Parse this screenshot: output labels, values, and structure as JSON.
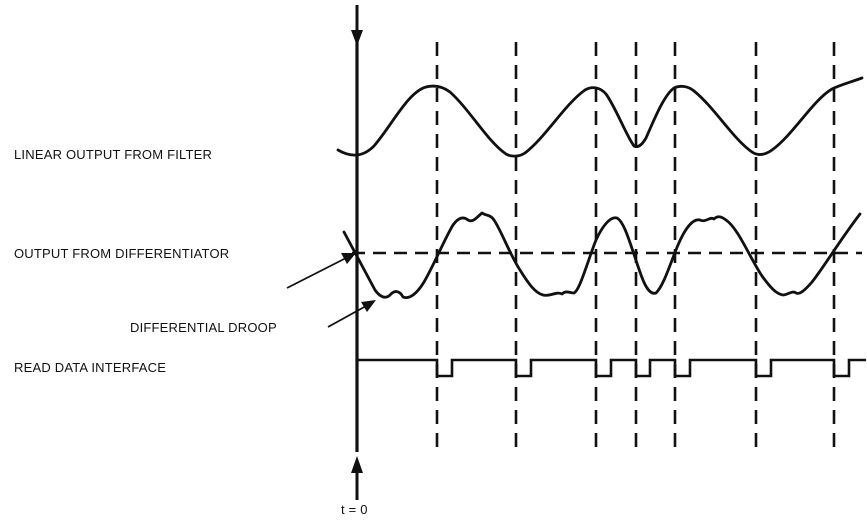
{
  "labels": {
    "linear_output": "LINEAR OUTPUT FROM FILTER",
    "differentiator_output": "OUTPUT FROM DIFFERENTIATOR",
    "differential_droop": "DIFFERENTIAL DROOP",
    "read_data": "READ DATA INTERFACE",
    "t_zero": "t = 0"
  },
  "colors": {
    "ink": "#111111",
    "background": "#ffffff"
  }
}
